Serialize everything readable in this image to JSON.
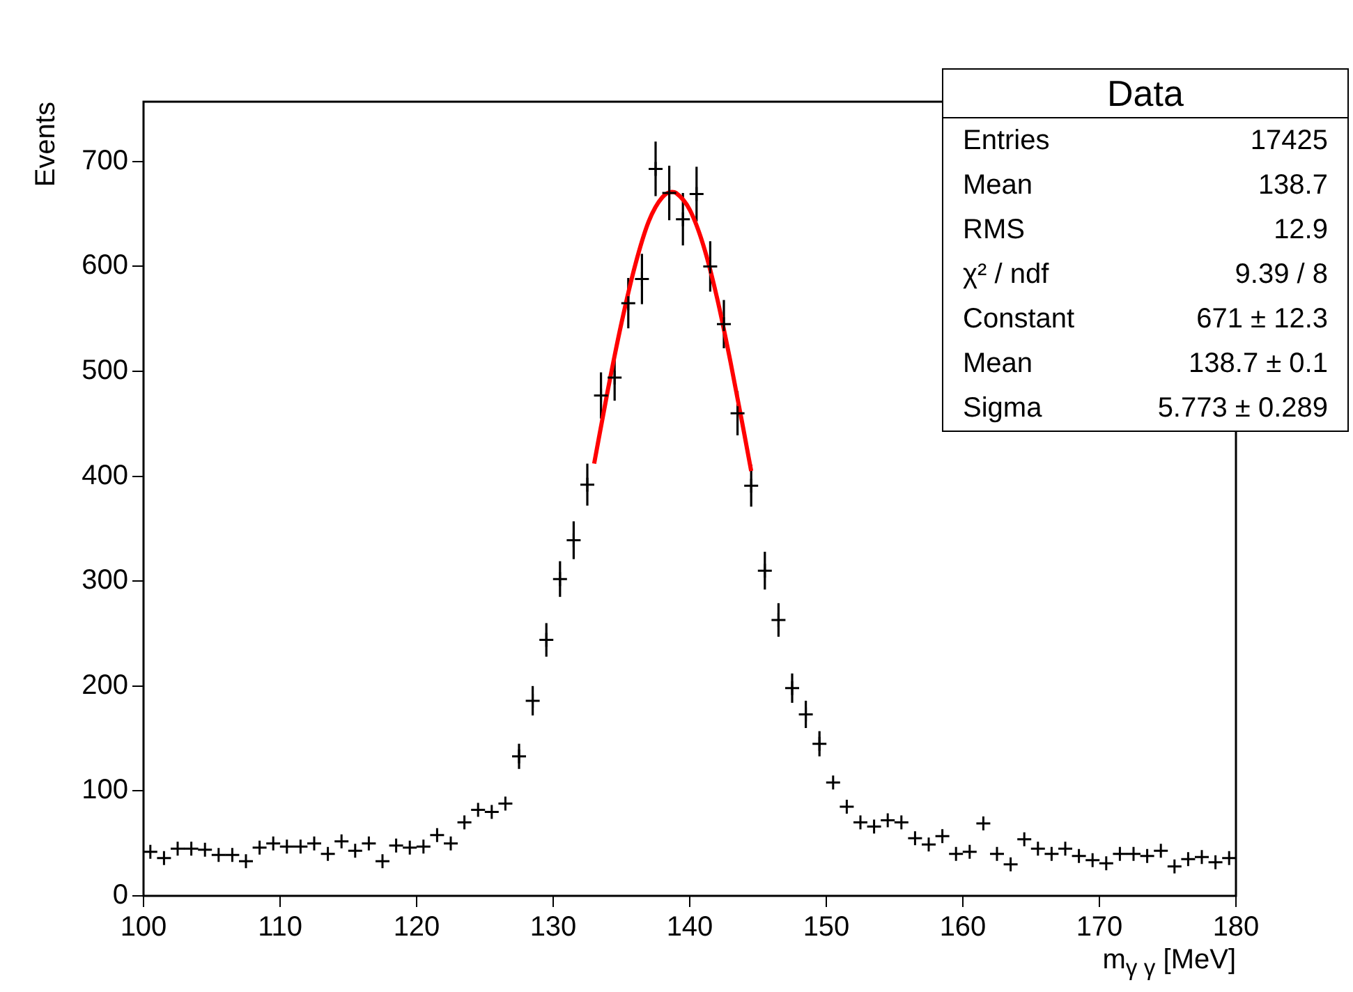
{
  "chart_data": {
    "type": "scatter",
    "title": "Data",
    "xlabel": "m$_{γ γ}$ [MeV]",
    "ylabel": "Events",
    "xlim": [
      100,
      180
    ],
    "xticks": [
      100,
      110,
      120,
      130,
      140,
      150,
      160,
      170,
      180
    ],
    "ylim": [
      0,
      757
    ],
    "yticks": [
      0,
      100,
      200,
      300,
      400,
      500,
      600,
      700
    ],
    "grid": false,
    "legend": false,
    "marker": "cross",
    "annotations": [
      "Entries",
      "17425",
      "Mean",
      "138.7",
      "RMS",
      "12.9",
      "χ² / ndf",
      "9.39 / 8",
      "Constant",
      "671 ± 12.3",
      "Mean",
      "138.7 ± 0.1",
      "Sigma",
      "5.773 ± 0.289"
    ],
    "series": [
      {
        "color": "#000000",
        "x": [
          100.5,
          101.5,
          102.5,
          103.5,
          104.5,
          105.5,
          106.5,
          107.5,
          108.5,
          109.5,
          110.5,
          111.5,
          112.5,
          113.5,
          114.5,
          115.5,
          116.5,
          117.5,
          118.5,
          119.5,
          120.5,
          121.5,
          122.5,
          123.5,
          124.5,
          125.5,
          126.5,
          127.5,
          128.5,
          129.5,
          130.5,
          131.5,
          132.5,
          133.5,
          134.5,
          135.5,
          136.5,
          137.5,
          138.5,
          139.5,
          140.5,
          141.5,
          142.5,
          143.5,
          144.5,
          145.5,
          146.5,
          147.5,
          148.5,
          149.5,
          150.5,
          151.5,
          152.5,
          153.5,
          154.5,
          155.5,
          156.5,
          157.5,
          158.5,
          159.5,
          160.5,
          161.5,
          162.5,
          163.5,
          164.5,
          165.5,
          166.5,
          167.5,
          168.5,
          169.5,
          170.5,
          171.5,
          172.5,
          173.5,
          174.5,
          175.5,
          176.5,
          177.5,
          178.5,
          179.5
        ],
        "values": [
          42,
          36,
          45,
          45,
          44,
          39,
          39,
          33,
          46,
          50,
          47,
          47,
          50,
          40,
          52,
          43,
          50,
          33,
          48,
          46,
          47,
          58,
          50,
          70,
          82,
          80,
          88,
          133,
          186,
          244,
          302,
          339,
          392,
          477,
          494,
          565,
          588,
          693,
          670,
          645,
          669,
          600,
          545,
          460,
          391,
          310,
          263,
          198,
          173,
          145,
          108,
          85,
          70,
          66,
          72,
          70,
          55,
          49,
          57,
          40,
          42,
          69,
          40,
          30,
          54,
          45,
          40,
          45,
          38,
          34,
          31,
          40,
          40,
          38,
          43,
          28,
          35,
          37,
          32,
          36
        ],
        "errors": [
          null,
          null,
          null,
          null,
          null,
          null,
          null,
          null,
          null,
          null,
          null,
          null,
          null,
          null,
          null,
          null,
          null,
          null,
          null,
          null,
          null,
          null,
          null,
          null,
          null,
          null,
          null,
          12,
          14,
          16,
          17,
          18,
          20,
          22,
          22,
          24,
          24,
          26,
          26,
          25,
          26,
          24,
          23,
          21,
          20,
          18,
          16,
          14,
          13,
          12,
          null,
          null,
          null,
          null,
          null,
          null,
          null,
          null,
          null,
          null,
          null,
          null,
          null,
          null,
          null,
          null,
          null,
          null,
          null,
          null,
          null,
          null,
          null,
          null,
          null,
          null,
          null,
          null,
          null,
          null
        ]
      },
      {
        "type": "line",
        "color": "#ff0000",
        "marker": "none",
        "x": [
          133,
          134,
          135,
          136,
          137,
          138,
          138.7,
          139,
          140,
          141,
          142,
          143,
          144,
          144.5
        ],
        "values": [
          412,
          482,
          546,
          601,
          643,
          666,
          671,
          670,
          654,
          620,
          570,
          508,
          440,
          405
        ]
      }
    ]
  }
}
